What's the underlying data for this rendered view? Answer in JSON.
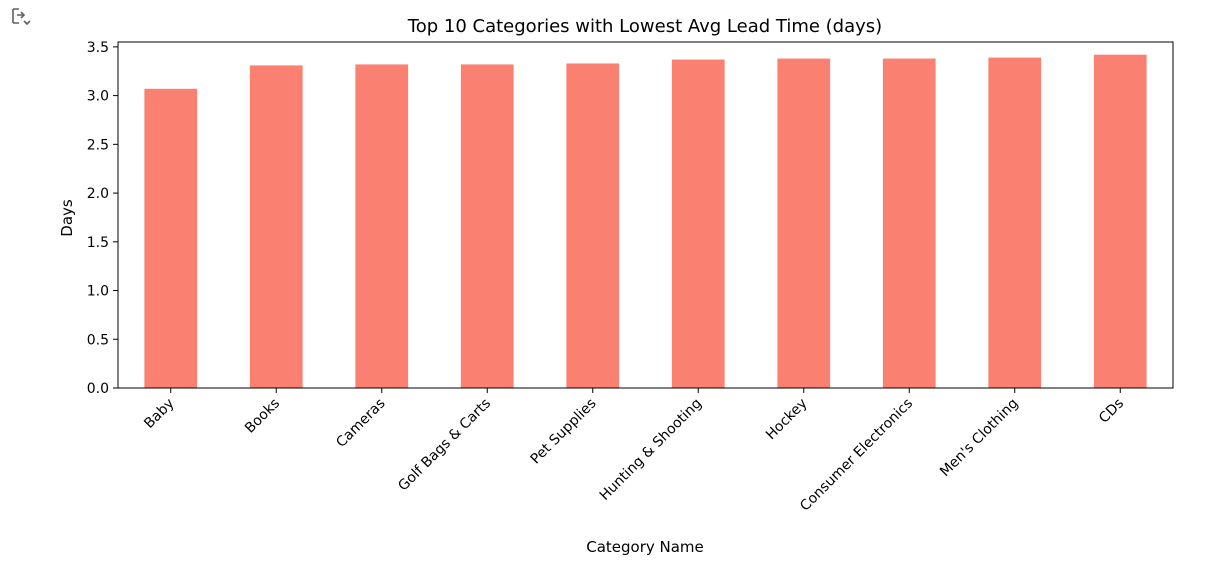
{
  "output": {
    "toggle_icon": "output-collapse-icon"
  },
  "chart_data": {
    "type": "bar",
    "title": "Top 10 Categories with Lowest Avg Lead Time (days)",
    "xlabel": "Category Name",
    "ylabel": "Days",
    "categories": [
      "Baby",
      "Books",
      "Cameras",
      "Golf Bags & Carts",
      "Pet Supplies",
      "Hunting & Shooting",
      "Hockey",
      "Consumer Electronics",
      "Men's Clothing",
      "CDs"
    ],
    "values": [
      3.07,
      3.31,
      3.32,
      3.32,
      3.33,
      3.37,
      3.38,
      3.38,
      3.39,
      3.42
    ],
    "ylim": [
      0,
      3.55
    ],
    "yticks": [
      0.0,
      0.5,
      1.0,
      1.5,
      2.0,
      2.5,
      3.0,
      3.5
    ],
    "ytick_labels": [
      "0.0",
      "0.5",
      "1.0",
      "1.5",
      "2.0",
      "2.5",
      "3.0",
      "3.5"
    ],
    "grid": false,
    "bar_color": "#fa8072"
  }
}
